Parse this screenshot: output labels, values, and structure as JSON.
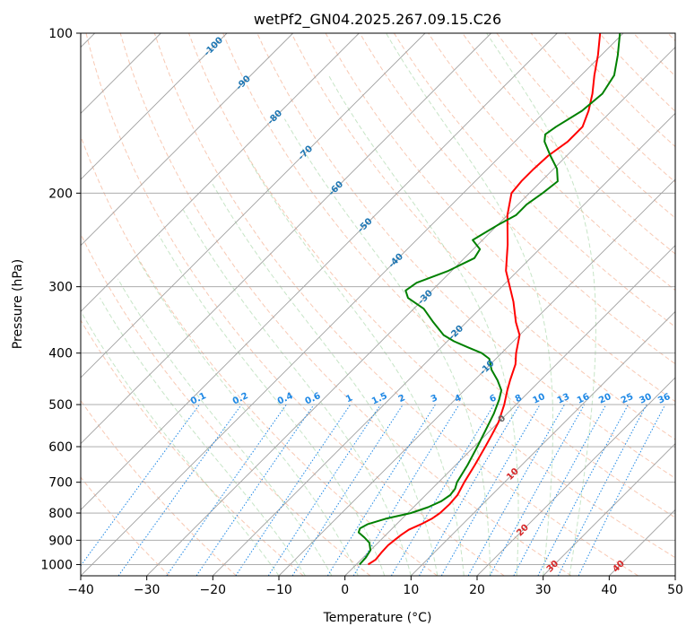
{
  "chart_data": {
    "type": "line",
    "title": "wetPf2_GN04.2025.267.09.15.C26",
    "xlabel": "Temperature (°C)",
    "ylabel": "Pressure (hPa)",
    "xlim": [
      -40,
      50
    ],
    "ylim": [
      1050,
      100
    ],
    "y_scale": "log",
    "x_ticks": [
      -40,
      -30,
      -20,
      -10,
      0,
      10,
      20,
      30,
      40,
      50
    ],
    "y_ticks": [
      1000,
      900,
      800,
      700,
      600,
      500,
      400,
      300,
      200,
      100
    ],
    "grid": true,
    "skew_deg": 45,
    "colors": {
      "temperature": "#ff0000",
      "dewpoint": "#008000",
      "isotherm": "#a0a0a0",
      "dry_adiabat": "#f4a582",
      "moist_adiabat": "#8fcc8f",
      "mixing_ratio": "#1e88e5",
      "isotherm_label_cold": "#1f77b4",
      "isotherm_label_warm": "#d62728"
    },
    "series": [
      {
        "key": "temperature",
        "points": [
          {
            "p": 1000,
            "t": 1.8
          },
          {
            "p": 980,
            "t": 2.2
          },
          {
            "p": 950,
            "t": 2.0
          },
          {
            "p": 920,
            "t": 1.9
          },
          {
            "p": 900,
            "t": 2.1
          },
          {
            "p": 880,
            "t": 2.3
          },
          {
            "p": 860,
            "t": 2.7
          },
          {
            "p": 840,
            "t": 3.7
          },
          {
            "p": 820,
            "t": 4.5
          },
          {
            "p": 800,
            "t": 4.9
          },
          {
            "p": 770,
            "t": 5.0
          },
          {
            "p": 740,
            "t": 4.8
          },
          {
            "p": 700,
            "t": 3.9
          },
          {
            "p": 650,
            "t": 2.9
          },
          {
            "p": 600,
            "t": 1.7
          },
          {
            "p": 570,
            "t": 0.9
          },
          {
            "p": 540,
            "t": 0.0
          },
          {
            "p": 500,
            "t": -1.8
          },
          {
            "p": 470,
            "t": -3.5
          },
          {
            "p": 450,
            "t": -4.6
          },
          {
            "p": 420,
            "t": -6.2
          },
          {
            "p": 400,
            "t": -7.8
          },
          {
            "p": 370,
            "t": -10.0
          },
          {
            "p": 350,
            "t": -12.5
          },
          {
            "p": 320,
            "t": -16.0
          },
          {
            "p": 300,
            "t": -18.8
          },
          {
            "p": 280,
            "t": -21.8
          },
          {
            "p": 250,
            "t": -25.5
          },
          {
            "p": 220,
            "t": -30.0
          },
          {
            "p": 200,
            "t": -32.7
          },
          {
            "p": 190,
            "t": -33.0
          },
          {
            "p": 180,
            "t": -33.0
          },
          {
            "p": 170,
            "t": -32.8
          },
          {
            "p": 160,
            "t": -32.0
          },
          {
            "p": 150,
            "t": -32.0
          },
          {
            "p": 140,
            "t": -33.5
          },
          {
            "p": 130,
            "t": -35.5
          },
          {
            "p": 120,
            "t": -38.0
          },
          {
            "p": 110,
            "t": -40.5
          },
          {
            "p": 100,
            "t": -43.5
          }
        ]
      },
      {
        "key": "dewpoint",
        "points": [
          {
            "p": 1000,
            "t": 0.5
          },
          {
            "p": 970,
            "t": 0.4
          },
          {
            "p": 940,
            "t": 0.0
          },
          {
            "p": 910,
            "t": -1.3
          },
          {
            "p": 890,
            "t": -2.8
          },
          {
            "p": 870,
            "t": -4.5
          },
          {
            "p": 855,
            "t": -4.9
          },
          {
            "p": 840,
            "t": -4.4
          },
          {
            "p": 820,
            "t": -2.5
          },
          {
            "p": 800,
            "t": 0.5
          },
          {
            "p": 780,
            "t": 2.2
          },
          {
            "p": 760,
            "t": 3.3
          },
          {
            "p": 740,
            "t": 3.7
          },
          {
            "p": 720,
            "t": 3.5
          },
          {
            "p": 700,
            "t": 2.8
          },
          {
            "p": 650,
            "t": 1.8
          },
          {
            "p": 600,
            "t": 0.5
          },
          {
            "p": 560,
            "t": -0.7
          },
          {
            "p": 520,
            "t": -2.0
          },
          {
            "p": 490,
            "t": -3.3
          },
          {
            "p": 470,
            "t": -4.4
          },
          {
            "p": 450,
            "t": -6.5
          },
          {
            "p": 430,
            "t": -9.0
          },
          {
            "p": 410,
            "t": -11.0
          },
          {
            "p": 400,
            "t": -13.0
          },
          {
            "p": 390,
            "t": -16.0
          },
          {
            "p": 380,
            "t": -19.0
          },
          {
            "p": 370,
            "t": -21.5
          },
          {
            "p": 350,
            "t": -25.0
          },
          {
            "p": 330,
            "t": -28.5
          },
          {
            "p": 315,
            "t": -32.5
          },
          {
            "p": 305,
            "t": -34.0
          },
          {
            "p": 295,
            "t": -33.5
          },
          {
            "p": 280,
            "t": -30.5
          },
          {
            "p": 265,
            "t": -28.5
          },
          {
            "p": 255,
            "t": -29.0
          },
          {
            "p": 245,
            "t": -31.5
          },
          {
            "p": 230,
            "t": -30.0
          },
          {
            "p": 220,
            "t": -28.7
          },
          {
            "p": 210,
            "t": -28.7
          },
          {
            "p": 200,
            "t": -28.0
          },
          {
            "p": 190,
            "t": -27.5
          },
          {
            "p": 180,
            "t": -29.5
          },
          {
            "p": 170,
            "t": -32.5
          },
          {
            "p": 160,
            "t": -35.5
          },
          {
            "p": 155,
            "t": -36.5
          },
          {
            "p": 150,
            "t": -36.0
          },
          {
            "p": 140,
            "t": -34.5
          },
          {
            "p": 130,
            "t": -34.0
          },
          {
            "p": 120,
            "t": -35.0
          },
          {
            "p": 110,
            "t": -37.5
          },
          {
            "p": 100,
            "t": -40.5
          }
        ]
      }
    ],
    "isotherm_labels": [
      {
        "label": "-100",
        "t": -100
      },
      {
        "label": "-90",
        "t": -90
      },
      {
        "label": "-80",
        "t": -80
      },
      {
        "label": "-70",
        "t": -70
      },
      {
        "label": "-60",
        "t": -60
      },
      {
        "label": "-50",
        "t": -50
      },
      {
        "label": "-40",
        "t": -40
      },
      {
        "label": "-30",
        "t": -30
      },
      {
        "label": "-20",
        "t": -20
      },
      {
        "label": "-10",
        "t": -10
      },
      {
        "label": "0",
        "t": 0
      },
      {
        "label": "10",
        "t": 10
      },
      {
        "label": "20",
        "t": 20
      },
      {
        "label": "30",
        "t": 30
      },
      {
        "label": "40",
        "t": 40
      }
    ],
    "mixing_ratio_labels": [
      "0.1",
      "0.2",
      "0.4",
      "0.6",
      "1",
      "1.5",
      "2",
      "3",
      "4",
      "6",
      "8",
      "10",
      "13",
      "16",
      "20",
      "25",
      "30",
      "36"
    ],
    "mixing_ratio_values": [
      0.1,
      0.2,
      0.4,
      0.6,
      1,
      1.5,
      2,
      3,
      4,
      6,
      8,
      10,
      13,
      16,
      20,
      25,
      30,
      36
    ]
  }
}
